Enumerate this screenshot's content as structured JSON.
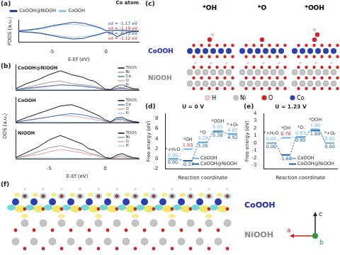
{
  "chart_data": [
    {
      "panel": "(a)",
      "type": "line",
      "title": "Co atom",
      "x_label": "E-Ef (eV)",
      "y_label": "PDOS (a.u.)",
      "x": [
        -8,
        -7,
        -6,
        -5,
        -4,
        -3,
        -2,
        -1.5,
        -1,
        -0.5,
        0,
        0.5,
        1,
        1.5,
        2,
        2.5,
        3
      ],
      "series": [
        {
          "name": "CoOOH@NiOOH",
          "color": "#1f3f8f",
          "spin_up": [
            0.1,
            0.4,
            0.8,
            1.5,
            2,
            2.5,
            2.2,
            1.8,
            1.4,
            0.9,
            0.2,
            0.1,
            0.3,
            0.2,
            0.1,
            0.05,
            0
          ],
          "spin_down": [
            -0.1,
            -0.3,
            -0.6,
            -1.2,
            -1.8,
            -2.2,
            -2,
            -1.5,
            -1.2,
            -0.8,
            -0.3,
            -0.5,
            -1.5,
            -0.8,
            -0.3,
            -0.1,
            0
          ]
        },
        {
          "name": "CoOOH",
          "color": "#8fc3e8",
          "spin_up": [
            0.1,
            0.3,
            0.6,
            1.2,
            1.8,
            2,
            1.6,
            1.5,
            1.2,
            0.7,
            0.1,
            0.1,
            0.2,
            0.2,
            0.1,
            0,
            0
          ],
          "spin_down": [
            -0.1,
            -0.2,
            -0.5,
            -1,
            -1.4,
            -1.8,
            -1.5,
            -1.3,
            -1,
            -0.6,
            -0.2,
            -0.6,
            -1.8,
            -1,
            -0.4,
            -0.1,
            0
          ]
        }
      ],
      "annotations": [
        {
          "text": "εd = -1.17 eV",
          "color": "#1f3f8f"
        },
        {
          "text": "εd = -1.19 eV",
          "color": "#d02020"
        },
        {
          "text": "εd = -0.75 eV",
          "color": "#1f3f8f"
        },
        {
          "text": "εd = -1.12 eV",
          "color": "#d02020"
        }
      ],
      "xlim": [
        -8,
        3
      ],
      "xticks": [
        -5,
        0
      ],
      "ylim": [
        -3,
        3
      ],
      "tick_labels": "x",
      "grid": false,
      "legend": "top"
    },
    {
      "panel": "(b)",
      "type": "line",
      "x_label": "E-Ef (eV)",
      "y_label": "DOS (a.u.)",
      "x": [
        -8,
        -7,
        -6,
        -5,
        -4,
        -3,
        -2,
        -1.5,
        -1,
        -0.5,
        0,
        0.5,
        1,
        1.5,
        2,
        2.5,
        3
      ],
      "subplots": [
        {
          "title": "CoOOH@NiOOH",
          "series": [
            {
              "name": "TDOS",
              "color": "#111111",
              "values": [
                0.5,
                2.5,
                4,
                6,
                7.5,
                6,
                5,
                4,
                3.5,
                2,
                0.3,
                0.2,
                1.5,
                2,
                1.2,
                0.5,
                0.3
              ]
            },
            {
              "name": "Ni",
              "color": "#9a9a9a",
              "values": [
                0.2,
                1,
                2,
                3,
                3.5,
                2.5,
                2,
                1.8,
                1.5,
                1,
                0.2,
                0.1,
                0.8,
                1.1,
                0.5,
                0.2,
                0.1
              ]
            },
            {
              "name": "Co",
              "color": "#3a78c0",
              "values": [
                0.1,
                0.6,
                1,
                1.5,
                2,
                1.8,
                1.5,
                1.2,
                1,
                0.6,
                0.1,
                0.1,
                0.5,
                0.7,
                0.4,
                0.2,
                0.1
              ]
            },
            {
              "name": "O",
              "color": "#e8a0a8",
              "values": [
                0.2,
                0.8,
                1.2,
                1.6,
                2,
                1.7,
                1.5,
                1,
                1,
                0.4,
                0.05,
                0.05,
                0.3,
                0.5,
                0.3,
                0.1,
                0.1
              ]
            },
            {
              "name": "H",
              "color": "#a9cbe6",
              "values": [
                0.05,
                0.2,
                0.3,
                0.2,
                0.2,
                0.1,
                0.1,
                0.05,
                0.05,
                0,
                0,
                0,
                0,
                0.05,
                0.05,
                0.02,
                0
              ]
            }
          ]
        },
        {
          "title": "CoOOH",
          "series": [
            {
              "name": "TDOS",
              "color": "#111111",
              "values": [
                0.3,
                2,
                3.5,
                5,
                6.5,
                7,
                5.5,
                4.5,
                3.5,
                2.5,
                1,
                0.3,
                1.8,
                2,
                1,
                0.4,
                0.2
              ]
            },
            {
              "name": "Co",
              "color": "#3a78c0",
              "values": [
                0.1,
                0.8,
                1.5,
                2.2,
                3,
                3.5,
                3,
                2.5,
                2,
                1.5,
                0.6,
                0.2,
                1.2,
                1.3,
                0.6,
                0.2,
                0.1
              ]
            },
            {
              "name": "O",
              "color": "#e8a0a8",
              "values": [
                0.2,
                1,
                1.6,
                2.2,
                2.8,
                2.6,
                2,
                1.6,
                1.2,
                0.8,
                0.3,
                0.1,
                0.5,
                0.6,
                0.3,
                0.1,
                0.1
              ]
            },
            {
              "name": "H",
              "color": "#a9cbe6",
              "values": [
                0.05,
                0.2,
                0.3,
                0.3,
                0.2,
                0.2,
                0.1,
                0.1,
                0.05,
                0.05,
                0,
                0,
                0.05,
                0.05,
                0.05,
                0,
                0
              ]
            }
          ]
        },
        {
          "title": "NiOOH",
          "series": [
            {
              "name": "TDOS",
              "color": "#111111",
              "values": [
                0.4,
                2.2,
                4,
                6.5,
                8,
                6.5,
                5,
                3.5,
                3,
                1.8,
                0.5,
                0.2,
                1.2,
                1.8,
                1,
                0.4,
                0.2
              ]
            },
            {
              "name": "Ni",
              "color": "#9a9a9a",
              "values": [
                0.2,
                1.2,
                2.4,
                3.8,
                4.5,
                3.6,
                2.8,
                2,
                1.6,
                1,
                0.3,
                0.1,
                0.7,
                1.1,
                0.6,
                0.2,
                0.1
              ]
            },
            {
              "name": "O",
              "color": "#e8a0a8",
              "values": [
                0.2,
                0.9,
                1.4,
                2.4,
                3.2,
                2.6,
                2,
                1.4,
                1.3,
                0.7,
                0.2,
                0.1,
                0.4,
                0.6,
                0.3,
                0.1,
                0.1
              ]
            },
            {
              "name": "H",
              "color": "#a9cbe6",
              "values": [
                0.05,
                0.2,
                0.3,
                0.3,
                0.3,
                0.2,
                0.1,
                0.1,
                0.05,
                0.05,
                0,
                0,
                0,
                0.05,
                0.05,
                0,
                0
              ]
            }
          ]
        }
      ],
      "xlim": [
        -8,
        3
      ],
      "xticks": [
        -5,
        0
      ],
      "ylim": [
        0,
        10
      ],
      "tick_labels": "x",
      "grid": false,
      "legend": "top-right"
    },
    {
      "panel": "(d)",
      "type": "step",
      "title": "U = 0 V",
      "x_label": "Reaction coordinate",
      "y_label": "Free energy (eV)",
      "categories": [
        "*+H₂O",
        "*OH",
        "*O",
        "*OOH",
        "*+O₂"
      ],
      "series": [
        {
          "name": "CoOOH",
          "color": "#6fb6e6",
          "values": [
            0,
            1.93,
            3.29,
            5.55,
            4.92
          ],
          "value_labels": [
            "0.00",
            "1.93",
            "3.29",
            "5.55",
            "4.92"
          ],
          "colors": [
            "#6fb6e6",
            "#e02020",
            "#6fb6e6",
            "#6fb6e6",
            "#6fb6e6"
          ]
        },
        {
          "name": "CoOOH@NiOOH",
          "color": "#1f5f9f",
          "values": [
            0,
            -0.37,
            3.26,
            5.38,
            4.92
          ],
          "value_labels": [
            "0.00",
            "-0.37",
            "3.26",
            "5.38",
            "4.92"
          ]
        }
      ],
      "ylim": [
        -2,
        9
      ],
      "yticks": [
        -2,
        0,
        2,
        4,
        6,
        8
      ],
      "tick_labels": "y",
      "grid": false,
      "legend": "bottom-right",
      "data_labels": true
    },
    {
      "panel": "(e)",
      "type": "step",
      "title": "U = 1.23 V",
      "x_label": "Reaction coordinate",
      "y_label": "Free energy (eV)",
      "categories": [
        "*+H₂O",
        "*OH",
        "*O",
        "*OOH",
        "*+O₂"
      ],
      "series": [
        {
          "name": "CoOOH",
          "color": "#6fb6e6",
          "values": [
            0,
            0.7,
            0.83,
            1.86,
            0
          ],
          "value_labels": [
            "0.00",
            "0.70",
            "0.83",
            "1.86",
            "0.00"
          ],
          "colors": [
            "#6fb6e6",
            "#e02020",
            "#6fb6e6",
            "#6fb6e6",
            "#6fb6e6"
          ]
        },
        {
          "name": "CoOOH@NiOOH",
          "color": "#1f5f9f",
          "values": [
            0,
            -1.6,
            0.8,
            1.69,
            0
          ],
          "value_labels": [
            "0.00",
            "-1.60",
            "0.80",
            "1.69",
            "0.00"
          ]
        }
      ],
      "ylim": [
        -3.5,
        4
      ],
      "yticks": [
        -3,
        -2,
        -1,
        0,
        1,
        2,
        3,
        4
      ],
      "tick_labels": "y",
      "grid": false,
      "legend": "bottom-right",
      "data_labels": true
    }
  ],
  "structures": {
    "panel": "(c)",
    "states": [
      {
        "label": "*OH",
        "adsorbate": [
          "O",
          "H"
        ]
      },
      {
        "label": "*O",
        "adsorbate": [
          "O"
        ]
      },
      {
        "label": "*OOH",
        "adsorbate": [
          "O",
          "O",
          "H"
        ]
      }
    ],
    "layers": [
      {
        "label": "CoOOH",
        "color": "#1f2fa8"
      },
      {
        "label": "NiOOH",
        "color": "#8a8a8a"
      }
    ],
    "elements": [
      {
        "label": "H",
        "color": "#f2cfcf"
      },
      {
        "label": "Ni",
        "color": "#c4c4c4"
      },
      {
        "label": "O",
        "color": "#d62020"
      },
      {
        "label": "Co",
        "color": "#2b3fae"
      }
    ]
  },
  "charge_density": {
    "panel": "(f)",
    "layers": [
      {
        "label": "CoOOH",
        "color": "#1f2fa8"
      },
      {
        "label": "NiOOH",
        "color": "#8a8a8a"
      }
    ],
    "axes": [
      {
        "label": "c",
        "color": "#222222"
      },
      {
        "label": "a",
        "color": "#d02020"
      },
      {
        "label": "b",
        "color": "#2a9a3a"
      }
    ]
  }
}
